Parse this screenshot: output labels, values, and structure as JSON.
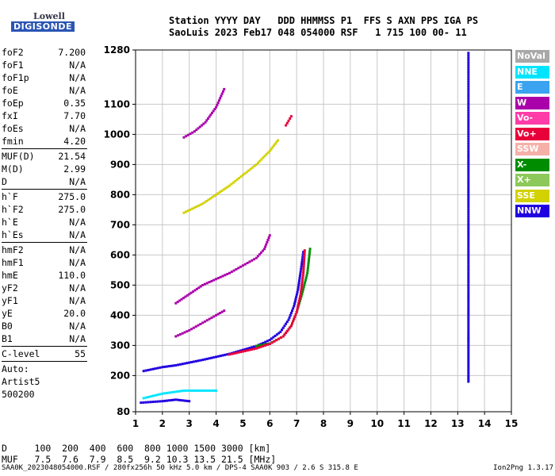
{
  "logo": {
    "line1": "Lowell",
    "line2": "DIGISONDE"
  },
  "header": {
    "line1": "Station YYYY DAY   DDD HHMMSS P1  FFS S AXN PPS IGA PS",
    "line2": "SaoLuis 2023 Feb17 048 054000 RSF   1 715 100 00- 11"
  },
  "params": [
    {
      "name": "foF2",
      "value": "7.200"
    },
    {
      "name": "foF1",
      "value": "N/A"
    },
    {
      "name": "foF1p",
      "value": "N/A"
    },
    {
      "name": "foE",
      "value": "N/A"
    },
    {
      "name": "foEp",
      "value": "0.35"
    },
    {
      "name": "fxI",
      "value": "7.70"
    },
    {
      "name": "foEs",
      "value": "N/A"
    },
    {
      "name": "fmin",
      "value": "4.20"
    },
    {
      "sep": true
    },
    {
      "name": "MUF(D)",
      "value": "21.54"
    },
    {
      "name": "M(D)",
      "value": "2.99"
    },
    {
      "name": "D",
      "value": "N/A"
    },
    {
      "sep": true
    },
    {
      "name": "h`F",
      "value": "275.0"
    },
    {
      "name": "h`F2",
      "value": "275.0"
    },
    {
      "name": "h`E",
      "value": "N/A"
    },
    {
      "name": "h`Es",
      "value": "N/A"
    },
    {
      "sep": true
    },
    {
      "name": "hmF2",
      "value": "N/A"
    },
    {
      "name": "hmF1",
      "value": "N/A"
    },
    {
      "name": "hmE",
      "value": "110.0"
    },
    {
      "name": "yF2",
      "value": "N/A"
    },
    {
      "name": "yF1",
      "value": "N/A"
    },
    {
      "name": "yE",
      "value": "20.0"
    },
    {
      "name": "B0",
      "value": "N/A"
    },
    {
      "name": "B1",
      "value": "N/A"
    },
    {
      "sep": true
    },
    {
      "name": "C-level",
      "value": "55"
    },
    {
      "sep": true
    }
  ],
  "autoscale": [
    "Auto:",
    "Artist5",
    "500200"
  ],
  "legend": [
    {
      "label": "NoVal",
      "color": "#a8a8a8"
    },
    {
      "label": "NNE",
      "color": "#00e5ff"
    },
    {
      "label": "E",
      "color": "#3ba3ef"
    },
    {
      "label": "W",
      "color": "#aa00aa"
    },
    {
      "label": "Vo-",
      "color": "#ff3ca8"
    },
    {
      "label": "Vo+",
      "color": "#e8003a"
    },
    {
      "label": "SSW",
      "color": "#f5b0a8"
    },
    {
      "label": "X-",
      "color": "#008c00"
    },
    {
      "label": "X+",
      "color": "#8cc85a"
    },
    {
      "label": "SSE",
      "color": "#d2d200"
    },
    {
      "label": "NNW",
      "color": "#2000e0"
    }
  ],
  "freq_table": {
    "line1": "D     100  200  400  600  800 1000 1500 3000 [km]",
    "line2": "MUF   7.5  7.6  7.9  8.5  9.2 10.3 13.5 21.5 [MHz]"
  },
  "footer": {
    "left": "SAA0K_2023048054000.RSF / 280fx256h 50 kHz 5.0 km / DPS-4 SAA0K 903 / 2.6 S 315.8 E",
    "right": "Ion2Png 1.3.17"
  },
  "chart_data": {
    "type": "scatter",
    "title": "",
    "xlabel": "",
    "ylabel": "",
    "xlim": [
      1,
      15
    ],
    "ylim": [
      80,
      1280
    ],
    "x_ticks": [
      "1",
      "2",
      "3",
      "4",
      "5",
      "6",
      "7",
      "8",
      "9",
      "10",
      "11",
      "12",
      "13",
      "14",
      "15"
    ],
    "y_ticks": [
      {
        "value": 80,
        "label": "80"
      },
      {
        "value": 200,
        "label": "200"
      },
      {
        "value": 300,
        "label": "300"
      },
      {
        "value": 400,
        "label": "400"
      },
      {
        "value": 500,
        "label": "500"
      },
      {
        "value": 600,
        "label": "600"
      },
      {
        "value": 700,
        "label": "700"
      },
      {
        "value": 800,
        "label": "800"
      },
      {
        "value": 900,
        "label": "900"
      },
      {
        "value": 1000,
        "label": "1000"
      },
      {
        "value": 1100,
        "label": "1100"
      },
      {
        "value": 1280,
        "label": "1280"
      }
    ],
    "grid": true,
    "series": [
      {
        "color": "#2000e0",
        "points": [
          [
            1.3,
            215
          ],
          [
            2,
            228
          ],
          [
            2.5,
            234
          ],
          [
            3,
            243
          ],
          [
            3.5,
            252
          ],
          [
            4,
            262
          ],
          [
            4.5,
            272
          ],
          [
            5,
            285
          ],
          [
            5.5,
            298
          ],
          [
            6,
            318
          ],
          [
            6.4,
            345
          ],
          [
            6.7,
            385
          ],
          [
            6.9,
            430
          ],
          [
            7.05,
            485
          ],
          [
            7.15,
            545
          ],
          [
            7.25,
            610
          ]
        ]
      },
      {
        "color": "#008c00",
        "points": [
          [
            5.5,
            298
          ],
          [
            6,
            306
          ],
          [
            6.5,
            330
          ],
          [
            6.8,
            365
          ],
          [
            7,
            410
          ],
          [
            7.2,
            470
          ],
          [
            7.4,
            540
          ],
          [
            7.5,
            620
          ]
        ]
      },
      {
        "color": "#e8003a",
        "points": [
          [
            4.5,
            270
          ],
          [
            5,
            280
          ],
          [
            5.5,
            290
          ],
          [
            6,
            305
          ],
          [
            6.5,
            330
          ],
          [
            6.8,
            365
          ],
          [
            7,
            410
          ],
          [
            7.15,
            470
          ],
          [
            7.25,
            540
          ],
          [
            7.3,
            615
          ]
        ]
      },
      {
        "color": "#aa00aa",
        "points": [
          [
            2.5,
            440
          ],
          [
            3,
            470
          ],
          [
            3.5,
            500
          ],
          [
            4,
            520
          ],
          [
            4.5,
            540
          ],
          [
            5,
            565
          ],
          [
            5.5,
            590
          ],
          [
            5.8,
            620
          ],
          [
            6,
            665
          ]
        ]
      },
      {
        "color": "#d2d200",
        "points": [
          [
            2.8,
            740
          ],
          [
            3.5,
            770
          ],
          [
            4,
            800
          ],
          [
            4.5,
            830
          ],
          [
            5,
            865
          ],
          [
            5.5,
            900
          ],
          [
            6,
            945
          ],
          [
            6.3,
            980
          ]
        ]
      },
      {
        "color": "#aa00aa",
        "points": [
          [
            2.8,
            990
          ],
          [
            3.2,
            1010
          ],
          [
            3.6,
            1040
          ],
          [
            4,
            1090
          ],
          [
            4.3,
            1150
          ]
        ]
      },
      {
        "color": "#2000e0",
        "points": [
          [
            1.2,
            110
          ],
          [
            2,
            115
          ],
          [
            2.5,
            120
          ],
          [
            3,
            115
          ]
        ]
      },
      {
        "color": "#00e5ff",
        "points": [
          [
            1.3,
            125
          ],
          [
            2,
            140
          ],
          [
            2.8,
            150
          ],
          [
            3.4,
            150
          ],
          [
            4,
            150
          ]
        ]
      },
      {
        "color": "#aa00aa",
        "points": [
          [
            2.5,
            330
          ],
          [
            3,
            350
          ],
          [
            3.5,
            375
          ],
          [
            4,
            400
          ],
          [
            4.3,
            415
          ]
        ]
      },
      {
        "color": "#e8003a",
        "points": [
          [
            6.6,
            1030
          ],
          [
            6.8,
            1060
          ]
        ]
      },
      {
        "color": "#2000e0",
        "points": [
          [
            13.4,
            1270
          ],
          [
            13.4,
            1010
          ],
          [
            13.4,
            930
          ],
          [
            13.4,
            900
          ],
          [
            13.4,
            650
          ],
          [
            13.4,
            500
          ],
          [
            13.4,
            400
          ],
          [
            13.4,
            330
          ],
          [
            13.4,
            310
          ],
          [
            13.4,
            200
          ],
          [
            13.4,
            180
          ]
        ]
      }
    ]
  }
}
